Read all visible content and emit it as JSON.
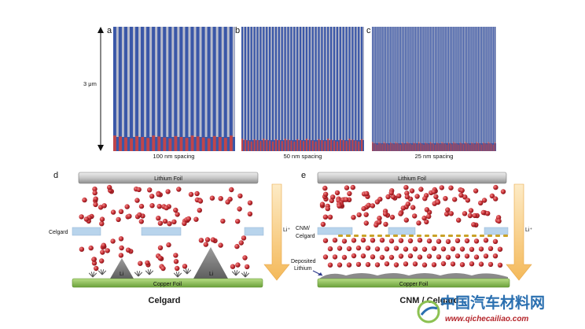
{
  "panels": {
    "a": {
      "letter": "a",
      "caption": "100 nm spacing",
      "stripes": 22
    },
    "b": {
      "letter": "b",
      "caption": "50 nm spacing",
      "stripes": 40
    },
    "c": {
      "letter": "c",
      "caption": "25 nm spacing",
      "stripes": 75
    },
    "scale": "3 μm"
  },
  "diagram_d": {
    "letter": "d",
    "top_label": "Lithium Foil",
    "bottom_label": "Copper Foil",
    "separator_label": "Celgard",
    "arrow_label": "Li⁺",
    "dendrite_label": "Li",
    "caption": "Celgard"
  },
  "diagram_e": {
    "letter": "e",
    "top_label": "Lithium Foil",
    "bottom_label": "Copper Foil",
    "separator_label_1": "CNM/",
    "separator_label_2": "Celgard",
    "deposited_label_1": "Deposited",
    "deposited_label_2": "Lithium",
    "arrow_label": "Li⁺",
    "caption": "CNM / Celgard"
  },
  "watermark": {
    "text_cn": "中国汽车材料网",
    "url": "www.qichecailiao.com"
  },
  "colors": {
    "stripe_blue": "#3a57a8",
    "stripe_gray": "#b9bccb",
    "stripe_red": "#c0454a",
    "ion_red": "#c0282e",
    "copper_green": "#8cc152",
    "separator_blue": "#b8d4ec",
    "cnm_gold": "#c9a227",
    "arrow_orange": "#f6c46b"
  }
}
